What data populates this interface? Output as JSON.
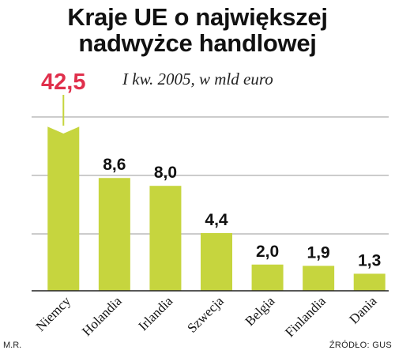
{
  "title_lines": [
    "Kraje UE o największej",
    "nadwyżce handlowej"
  ],
  "subtitle": "I kw. 2005, w mld euro",
  "author": "M.R.",
  "source": "ŹRÓDŁO: GUS",
  "colors": {
    "bar": "#c6d53e",
    "highlight": "#e0304c",
    "grid": "#9a9a9a",
    "axis": "#222222"
  },
  "chart_data": {
    "type": "bar",
    "categories": [
      "Niemcy",
      "Holandia",
      "Irlandia",
      "Szwecja",
      "Belgia",
      "Finlandia",
      "Dania"
    ],
    "values": [
      42.5,
      8.6,
      8.0,
      4.4,
      2.0,
      1.9,
      1.3
    ],
    "value_labels": [
      "42,5",
      "8,6",
      "8,0",
      "4,4",
      "2,0",
      "1,9",
      "1,3"
    ],
    "highlight_index": 0,
    "axis_break": true,
    "title": "Kraje UE o największej nadwyżce handlowej",
    "subtitle": "I kw. 2005, w mld euro",
    "unit": "mld euro",
    "grid": true,
    "legend": "none"
  }
}
